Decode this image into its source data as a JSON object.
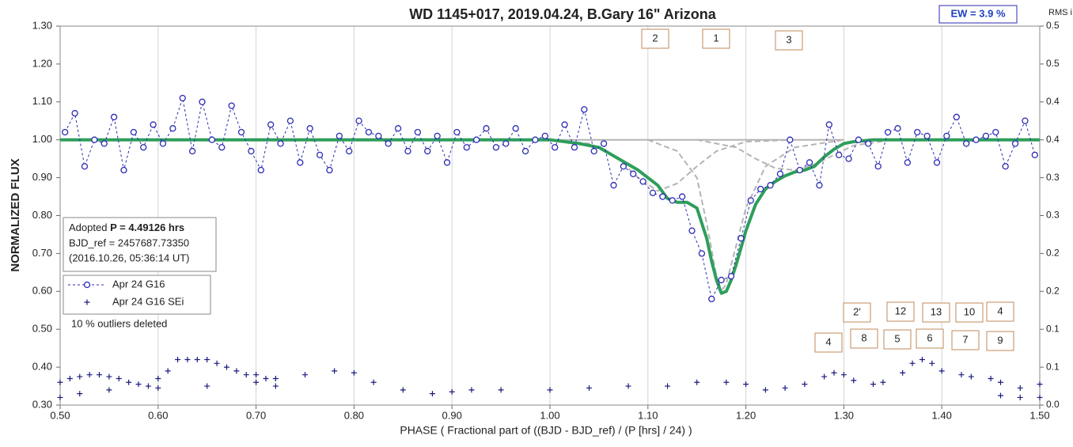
{
  "chart_data": {
    "type": "scatter",
    "title": "WD 1145+017, 2019.04.24, B.Gary 16\" Arizona",
    "xlabel": "PHASE ( Fractional part of ((BJD - BJD_ref) / (P [hrs] / 24) )",
    "ylabel": "NORMALIZED FLUX",
    "y2label": "RMS i",
    "ew_label": "EW =  3.9 %",
    "info": {
      "prefix": "Adopted",
      "period": "P = 4.49126 hrs",
      "bjd": "BJD_ref = 2457687.73350",
      "date": "(2016.10.26, 05:36:14 UT)"
    },
    "note": "10 % outliers deleted",
    "annotations": [
      "2",
      "1",
      "3",
      "2'",
      "12",
      "13",
      "10",
      "4",
      "4",
      "8",
      "5",
      "6",
      "7",
      "9"
    ],
    "xlim": [
      0.5,
      1.5
    ],
    "xticks": [
      {
        "value": 0.5,
        "label": "0.50"
      },
      {
        "value": 0.6,
        "label": "0.60"
      },
      {
        "value": 0.7,
        "label": "0.70"
      },
      {
        "value": 0.8,
        "label": "0.80"
      },
      {
        "value": 0.9,
        "label": "0.90"
      },
      {
        "value": 1.0,
        "label": "1.00"
      },
      {
        "value": 1.1,
        "label": "1.10"
      },
      {
        "value": 1.2,
        "label": "1.20"
      },
      {
        "value": 1.3,
        "label": "1.30"
      },
      {
        "value": 1.4,
        "label": "1.40"
      },
      {
        "value": 1.5,
        "label": "1.50"
      }
    ],
    "ylim": [
      0.3,
      1.3
    ],
    "yticks": [
      {
        "value": 0.3,
        "label": "0.30"
      },
      {
        "value": 0.4,
        "label": "0.40"
      },
      {
        "value": 0.5,
        "label": "0.50"
      },
      {
        "value": 0.6,
        "label": "0.60"
      },
      {
        "value": 0.7,
        "label": "0.70"
      },
      {
        "value": 0.8,
        "label": "0.80"
      },
      {
        "value": 0.9,
        "label": "0.90"
      },
      {
        "value": 1.0,
        "label": "1.00"
      },
      {
        "value": 1.1,
        "label": "1.10"
      },
      {
        "value": 1.2,
        "label": "1.20"
      },
      {
        "value": 1.3,
        "label": "1.30"
      }
    ],
    "y2lim": [
      0,
      0.5
    ],
    "y2ticks": [
      {
        "value": 0,
        "label": "0.0"
      },
      {
        "value": 0.05,
        "label": "0.1"
      },
      {
        "value": 0.1,
        "label": "0.1"
      },
      {
        "value": 0.15,
        "label": "0.2"
      },
      {
        "value": 0.2,
        "label": "0.2"
      },
      {
        "value": 0.25,
        "label": "0.3"
      },
      {
        "value": 0.3,
        "label": "0.3"
      },
      {
        "value": 0.35,
        "label": "0.4"
      },
      {
        "value": 0.4,
        "label": "0.4"
      },
      {
        "value": 0.45,
        "label": "0.5"
      },
      {
        "value": 0.5,
        "label": "0.5"
      }
    ],
    "grid": "x",
    "series": [
      {
        "name": "Apr 24 G16",
        "color": "#2b2bb5",
        "marker": "circle",
        "dash": true,
        "x": [
          0.505,
          0.515,
          0.525,
          0.535,
          0.545,
          0.555,
          0.565,
          0.575,
          0.585,
          0.595,
          0.605,
          0.615,
          0.625,
          0.635,
          0.645,
          0.655,
          0.665,
          0.675,
          0.685,
          0.695,
          0.705,
          0.715,
          0.725,
          0.735,
          0.745,
          0.755,
          0.765,
          0.775,
          0.785,
          0.795,
          0.805,
          0.815,
          0.825,
          0.835,
          0.845,
          0.855,
          0.865,
          0.875,
          0.885,
          0.895,
          0.905,
          0.915,
          0.925,
          0.935,
          0.945,
          0.955,
          0.965,
          0.975,
          0.985,
          0.995,
          1.005,
          1.015,
          1.025,
          1.035,
          1.045,
          1.055,
          1.065,
          1.075,
          1.085,
          1.095,
          1.105,
          1.115,
          1.125,
          1.135,
          1.145,
          1.155,
          1.165,
          1.175,
          1.185,
          1.195,
          1.205,
          1.215,
          1.225,
          1.235,
          1.245,
          1.255,
          1.265,
          1.275,
          1.285,
          1.295,
          1.305,
          1.315,
          1.325,
          1.335,
          1.345,
          1.355,
          1.365,
          1.375,
          1.385,
          1.395,
          1.405,
          1.415,
          1.425,
          1.435,
          1.445,
          1.455,
          1.465,
          1.475,
          1.485,
          1.495
        ],
        "values": [
          1.02,
          1.07,
          0.93,
          1.0,
          0.99,
          1.06,
          0.92,
          1.02,
          0.98,
          1.04,
          0.99,
          1.03,
          1.11,
          0.97,
          1.1,
          1.0,
          0.98,
          1.09,
          1.02,
          0.97,
          0.92,
          1.04,
          0.99,
          1.05,
          0.94,
          1.03,
          0.96,
          0.92,
          1.01,
          0.97,
          1.05,
          1.02,
          1.01,
          0.99,
          1.03,
          0.97,
          1.02,
          0.97,
          1.01,
          0.94,
          1.02,
          0.98,
          1.0,
          1.03,
          0.98,
          0.99,
          1.03,
          0.97,
          1.0,
          1.01,
          0.98,
          1.04,
          0.98,
          1.08,
          0.97,
          0.99,
          0.88,
          0.93,
          0.91,
          0.89,
          0.86,
          0.85,
          0.84,
          0.85,
          0.76,
          0.7,
          0.58,
          0.63,
          0.64,
          0.74,
          0.84,
          0.87,
          0.88,
          0.91,
          1.0,
          0.92,
          0.94,
          0.88,
          1.04,
          0.96,
          0.95,
          1.0,
          0.99,
          0.93,
          1.02,
          1.03,
          0.94,
          1.02,
          1.01,
          0.94,
          1.01,
          1.06,
          0.99,
          1.0,
          1.01,
          1.02,
          0.93,
          0.99,
          1.05,
          0.96
        ]
      },
      {
        "name": "Apr 24 G16 SEi",
        "color": "#1a1a80",
        "marker": "plus",
        "dash": false,
        "x": [
          0.5,
          0.51,
          0.52,
          0.53,
          0.54,
          0.55,
          0.56,
          0.57,
          0.58,
          0.59,
          0.6,
          0.61,
          0.62,
          0.63,
          0.64,
          0.65,
          0.66,
          0.67,
          0.68,
          0.69,
          0.7,
          0.71,
          0.72,
          0.5,
          0.52,
          0.55,
          0.6,
          0.65,
          0.7,
          0.72,
          0.75,
          0.78,
          0.8,
          0.82,
          0.85,
          0.88,
          0.9,
          0.92,
          0.95,
          1.0,
          1.04,
          1.08,
          1.12,
          1.15,
          1.18,
          1.2,
          1.22,
          1.24,
          1.26,
          1.28,
          1.29,
          1.3,
          1.31,
          1.33,
          1.34,
          1.36,
          1.37,
          1.38,
          1.39,
          1.4,
          1.42,
          1.43,
          1.45,
          1.46,
          1.48,
          1.5,
          1.46,
          1.48,
          1.5
        ],
        "values": [
          0.36,
          0.37,
          0.375,
          0.38,
          0.38,
          0.375,
          0.37,
          0.36,
          0.355,
          0.35,
          0.37,
          0.39,
          0.42,
          0.42,
          0.42,
          0.42,
          0.41,
          0.4,
          0.39,
          0.38,
          0.38,
          0.37,
          0.35,
          0.32,
          0.33,
          0.34,
          0.345,
          0.35,
          0.36,
          0.37,
          0.38,
          0.39,
          0.385,
          0.36,
          0.34,
          0.33,
          0.335,
          0.34,
          0.34,
          0.34,
          0.345,
          0.35,
          0.35,
          0.36,
          0.36,
          0.355,
          0.34,
          0.345,
          0.355,
          0.375,
          0.385,
          0.38,
          0.365,
          0.355,
          0.36,
          0.385,
          0.41,
          0.42,
          0.41,
          0.39,
          0.38,
          0.375,
          0.37,
          0.36,
          0.345,
          0.355,
          0.325,
          0.32,
          0.32
        ]
      },
      {
        "color": "#b4b4b4",
        "marker": "none",
        "dash": false,
        "width": 2,
        "x": [
          1.0,
          1.3
        ],
        "values": [
          1.0,
          1.0
        ]
      },
      {
        "color": "#b4b4b4",
        "marker": "none",
        "dash": true,
        "width": 2,
        "x": [
          1.0,
          1.04,
          1.07,
          1.09,
          1.11,
          1.13,
          1.15,
          1.17,
          1.2,
          1.25
        ],
        "values": [
          1.0,
          0.99,
          0.95,
          0.9,
          0.865,
          0.885,
          0.93,
          0.97,
          0.995,
          1.0
        ]
      },
      {
        "color": "#b4b4b4",
        "marker": "none",
        "dash": true,
        "width": 2,
        "x": [
          1.1,
          1.13,
          1.15,
          1.16,
          1.17,
          1.175,
          1.18,
          1.19,
          1.2,
          1.22,
          1.25,
          1.3
        ],
        "values": [
          1.0,
          0.97,
          0.9,
          0.78,
          0.64,
          0.6,
          0.62,
          0.72,
          0.82,
          0.93,
          0.98,
          1.0
        ]
      },
      {
        "color": "#b4b4b4",
        "marker": "none",
        "dash": true,
        "width": 2,
        "x": [
          1.15,
          1.19,
          1.21,
          1.23,
          1.25,
          1.27,
          1.29,
          1.31,
          1.35
        ],
        "values": [
          1.0,
          0.98,
          0.95,
          0.925,
          0.92,
          0.935,
          0.96,
          0.985,
          1.0
        ]
      },
      {
        "color": "#2e9e5b",
        "marker": "none",
        "dash": false,
        "width": 4,
        "x": [
          0.5,
          1.0,
          1.03,
          1.05,
          1.07,
          1.09,
          1.11,
          1.12,
          1.13,
          1.14,
          1.15,
          1.16,
          1.165,
          1.17,
          1.175,
          1.18,
          1.185,
          1.19,
          1.2,
          1.21,
          1.22,
          1.23,
          1.24,
          1.25,
          1.26,
          1.27,
          1.28,
          1.29,
          1.3,
          1.31,
          1.33,
          1.5
        ],
        "values": [
          1.0,
          1.0,
          0.99,
          0.98,
          0.95,
          0.92,
          0.88,
          0.845,
          0.835,
          0.835,
          0.82,
          0.74,
          0.68,
          0.63,
          0.595,
          0.6,
          0.63,
          0.67,
          0.76,
          0.83,
          0.87,
          0.89,
          0.905,
          0.915,
          0.92,
          0.93,
          0.955,
          0.975,
          0.99,
          0.995,
          1.0,
          1.0
        ]
      }
    ]
  }
}
